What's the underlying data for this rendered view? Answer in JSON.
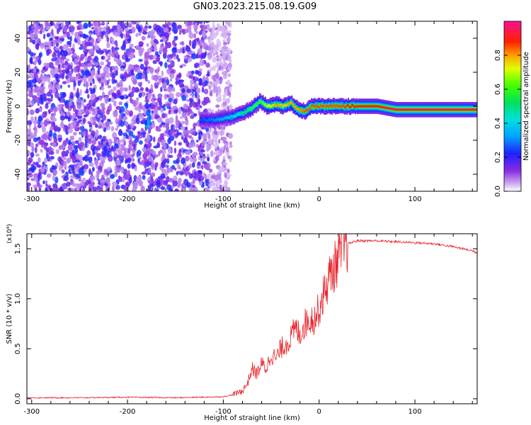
{
  "page": {
    "title": "GN03.2023.215.08.19.G09"
  },
  "chart_data": [
    {
      "type": "heatmap",
      "title": "GN03.2023.215.08.19.G09",
      "xlabel": "Height of straight line (km)",
      "ylabel": "Frequency (Hz)",
      "xlim": [
        -305,
        165
      ],
      "ylim": [
        -50,
        50
      ],
      "xticks": [
        -300,
        -200,
        -100,
        0,
        100
      ],
      "yticks": [
        -40,
        -20,
        0,
        20,
        40
      ],
      "xtick_labels": [
        "-300",
        "-200",
        "-100",
        "0",
        "100"
      ],
      "ytick_labels": [
        "-40",
        "-20",
        "0",
        "20",
        "40"
      ],
      "colorbar": {
        "label": "Normalized spectral amplitude",
        "range": [
          0,
          1
        ],
        "ticks": [
          0.0,
          0.2,
          0.4,
          0.6,
          0.8
        ],
        "tick_labels": [
          "0.0",
          "0.2",
          "0.4",
          "0.6",
          "0.8"
        ],
        "colormap": "rainbow (white-violet-blue-cyan-green-yellow-red-magenta)"
      },
      "noise_region": {
        "x_range": [
          -305,
          -100
        ],
        "description": "scattered low-amplitude violet speckle across all frequencies"
      },
      "signal_track": {
        "x": [
          -125,
          -110,
          -100,
          -90,
          -80,
          -70,
          -62,
          -55,
          -45,
          -38,
          -30,
          -22,
          -15,
          -8,
          0,
          10,
          20,
          40,
          60,
          80,
          100,
          120,
          140,
          165
        ],
        "freq": [
          -8,
          -8,
          -7,
          -6,
          -4,
          -1,
          3,
          0,
          1,
          0,
          2,
          -2,
          -3,
          0,
          0,
          0,
          0,
          0,
          0,
          -2,
          -2,
          -2,
          -2,
          -2
        ],
        "amplitude": [
          0.25,
          0.3,
          0.35,
          0.4,
          0.5,
          0.6,
          0.6,
          0.7,
          0.8,
          0.75,
          0.8,
          0.8,
          0.85,
          0.85,
          0.85,
          0.85,
          0.85,
          0.9,
          0.9,
          0.95,
          0.95,
          0.95,
          0.95,
          0.95
        ]
      }
    },
    {
      "type": "line",
      "xlabel": "Height of straight line (km)",
      "ylabel": "SNR (10 * v/v)",
      "y_multiplier": "(x10⁴)",
      "xlim": [
        -305,
        165
      ],
      "ylim": [
        -0.05,
        1.65
      ],
      "xticks": [
        -300,
        -200,
        -100,
        0,
        100
      ],
      "yticks": [
        0.0,
        0.5,
        1.0,
        1.5
      ],
      "xtick_labels": [
        "-300",
        "-200",
        "-100",
        "0",
        "100"
      ],
      "ytick_labels": [
        "0.0",
        "0.5",
        "1.0",
        "1.5"
      ],
      "color": "#e8232a",
      "series": [
        {
          "x": [
            -305,
            -250,
            -200,
            -150,
            -100,
            -90,
            -80,
            -75,
            -70,
            -65,
            -60,
            -55,
            -50,
            -45,
            -40,
            -35,
            -30,
            -25,
            -20,
            -15,
            -10,
            -5,
            0,
            5,
            10,
            15,
            20,
            25,
            30,
            40,
            50,
            60,
            80,
            100,
            120,
            140,
            160,
            165
          ],
          "y": [
            0.01,
            0.01,
            0.015,
            0.01,
            0.02,
            0.04,
            0.08,
            0.15,
            0.3,
            0.25,
            0.35,
            0.3,
            0.45,
            0.4,
            0.5,
            0.55,
            0.6,
            0.7,
            0.65,
            0.75,
            0.8,
            0.8,
            0.9,
            1.05,
            1.2,
            1.3,
            1.4,
            1.5,
            1.55,
            1.58,
            1.58,
            1.58,
            1.57,
            1.56,
            1.55,
            1.52,
            1.48,
            1.46
          ]
        }
      ]
    }
  ]
}
